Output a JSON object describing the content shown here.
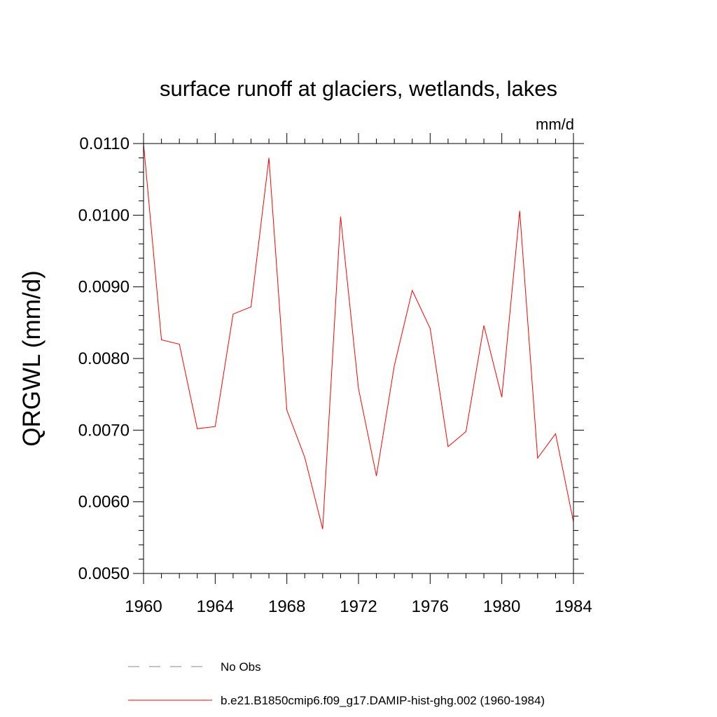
{
  "chart_data": {
    "type": "line",
    "title": "surface runoff at glaciers, wetlands, lakes",
    "units": "mm/d",
    "ylabel": "QRGWL  (mm/d)",
    "xlabel": "",
    "xlim": [
      1960,
      1984
    ],
    "ylim": [
      0.005,
      0.011
    ],
    "x_ticks": [
      1960,
      1964,
      1968,
      1972,
      1976,
      1980,
      1984
    ],
    "x_tick_labels": [
      "1960",
      "1964",
      "1968",
      "1972",
      "1976",
      "1980",
      "1984"
    ],
    "x_minor_step": 1,
    "y_ticks": [
      0.005,
      0.006,
      0.007,
      0.008,
      0.009,
      0.01,
      0.011
    ],
    "y_tick_labels": [
      "0.0050",
      "0.0060",
      "0.0070",
      "0.0080",
      "0.0090",
      "0.0100",
      "0.0110"
    ],
    "y_minor_step": 0.0002,
    "grid": false,
    "legend_position": "bottom",
    "series": [
      {
        "name": "b.e21.B1850cmip6.f09_g17.DAMIP-hist-ghg.002 (1960-1984)",
        "color": "#ff0000",
        "dash": "solid",
        "x": [
          1960,
          1961,
          1962,
          1963,
          1964,
          1965,
          1966,
          1967,
          1968,
          1969,
          1970,
          1971,
          1972,
          1973,
          1974,
          1975,
          1976,
          1977,
          1978,
          1979,
          1980,
          1981,
          1982,
          1983,
          1984
        ],
        "y": [
          0.011,
          0.00826,
          0.0082,
          0.00702,
          0.00705,
          0.00862,
          0.00872,
          0.0108,
          0.00728,
          0.00662,
          0.00562,
          0.00998,
          0.00758,
          0.00636,
          0.0079,
          0.00895,
          0.00842,
          0.00677,
          0.00698,
          0.00846,
          0.00746,
          0.01006,
          0.00661,
          0.00695,
          0.00572
        ]
      }
    ],
    "legend": [
      {
        "label": "No Obs",
        "color": "#8080c0",
        "dash": "dashed"
      },
      {
        "label": "b.e21.B1850cmip6.f09_g17.DAMIP-hist-ghg.002 (1960-1984)",
        "color": "#ff0000",
        "dash": "solid"
      }
    ]
  }
}
